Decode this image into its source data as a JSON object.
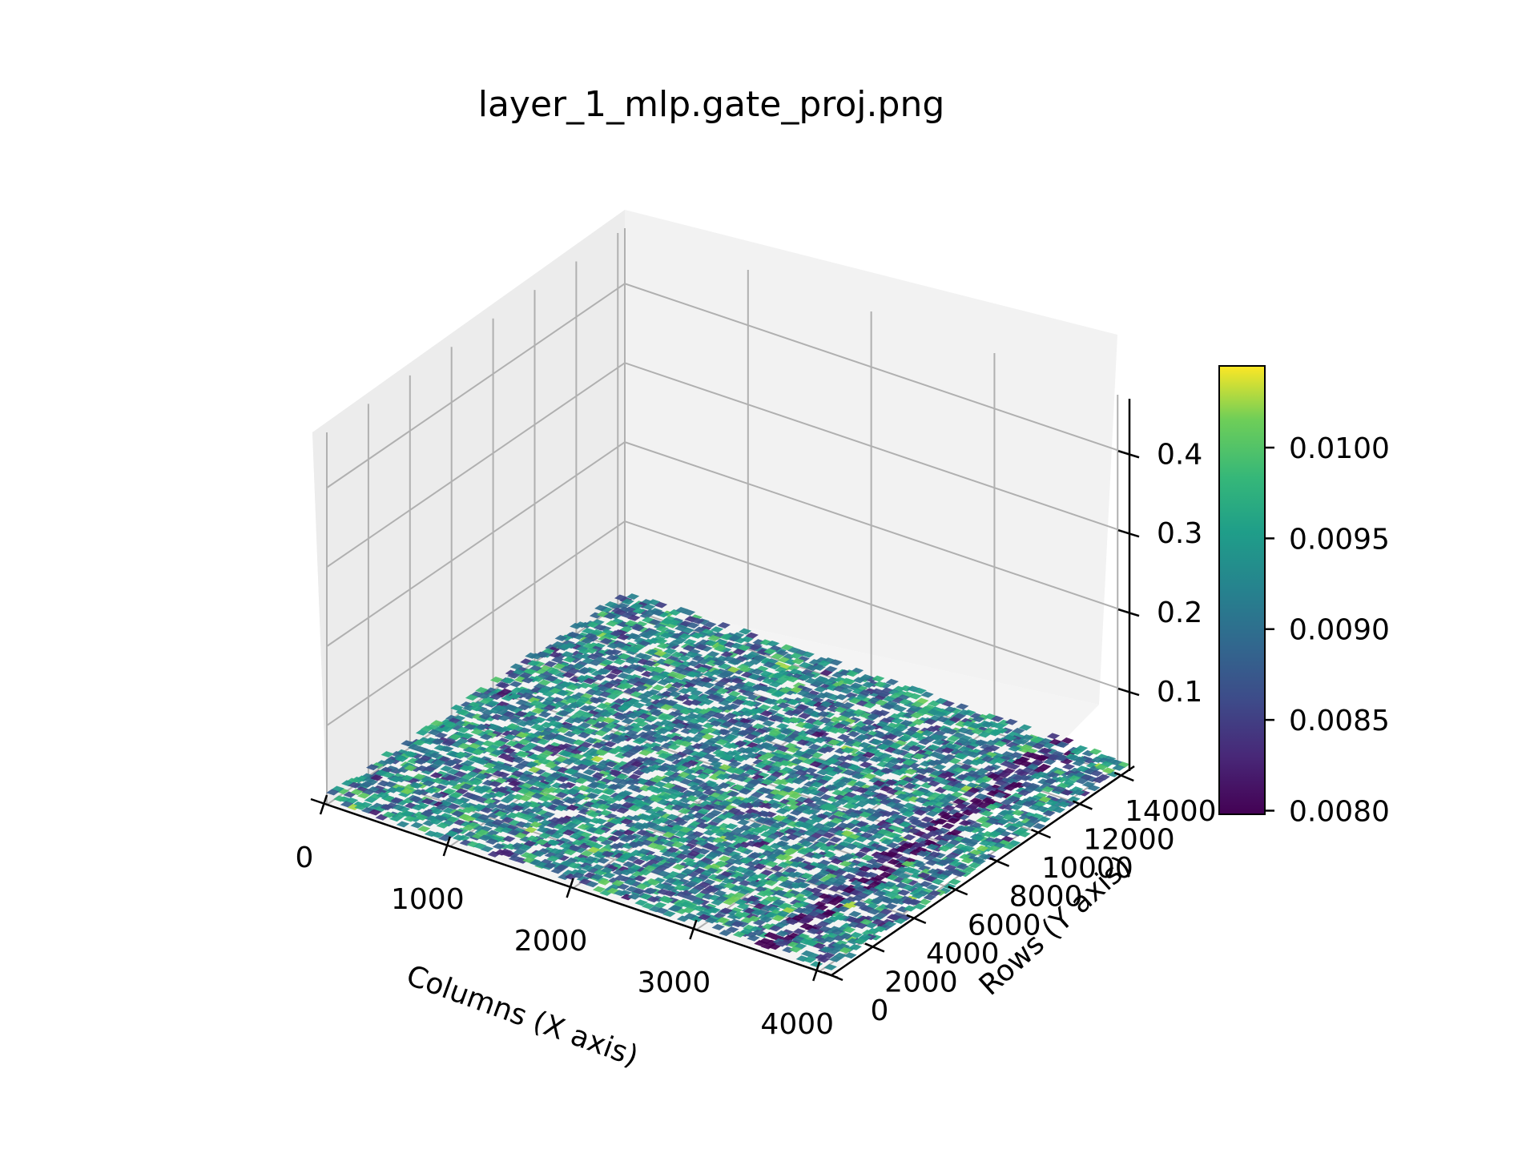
{
  "chart_data": {
    "type": "surface3d",
    "title": "layer_1_mlp.gate_proj.png",
    "xlabel": "Columns (X axis)",
    "ylabel": "Rows (Y axis)",
    "zlabel": "",
    "x_ticks": [
      0,
      1000,
      2000,
      3000,
      4000
    ],
    "y_ticks": [
      0,
      2000,
      4000,
      6000,
      8000,
      10000,
      12000,
      14000
    ],
    "z_ticks": [
      0.1,
      0.2,
      0.3,
      0.4
    ],
    "x_tick_labels": [
      "0",
      "1000",
      "2000",
      "3000",
      "4000"
    ],
    "y_tick_labels": [
      "0",
      "2000",
      "4000",
      "6000",
      "8000",
      "10000",
      "12000",
      "14000"
    ],
    "z_tick_labels": [
      "0.1",
      "0.2",
      "0.3",
      "0.4"
    ],
    "xlim": [
      0,
      4096
    ],
    "ylim": [
      0,
      14336
    ],
    "zlim": [
      0,
      0.47
    ],
    "surface_value_range": [
      0.008,
      0.0104
    ],
    "colormap": "viridis",
    "colorbar": {
      "ticks": [
        0.008,
        0.0085,
        0.009,
        0.0095,
        0.01
      ],
      "tick_labels": [
        "0.0080",
        "0.0085",
        "0.0090",
        "0.0095",
        "0.0100"
      ],
      "range": [
        0.00798,
        0.01045
      ]
    },
    "grid": true,
    "features": [
      {
        "kind": "low-value band",
        "x_center": 3600,
        "y_range": [
          0,
          14336
        ]
      }
    ]
  }
}
